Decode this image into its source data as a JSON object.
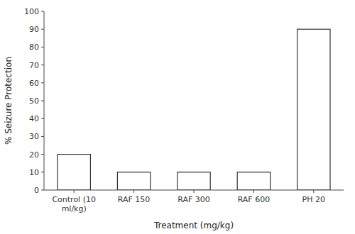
{
  "chart_data": {
    "type": "bar",
    "categories": [
      "Control (10\nml/kg)",
      "RAF 150",
      "RAF 300",
      "RAF 600",
      "PH 20"
    ],
    "values": [
      20,
      10,
      10,
      10,
      90
    ],
    "color": "white",
    "xlabel": "Treatment (mg/kg)",
    "ylabel": "% Seizure Protection",
    "ylim": [
      0,
      100
    ],
    "yticks": [
      0,
      10,
      20,
      30,
      40,
      50,
      60,
      70,
      80,
      90,
      100
    ],
    "grid": false
  }
}
